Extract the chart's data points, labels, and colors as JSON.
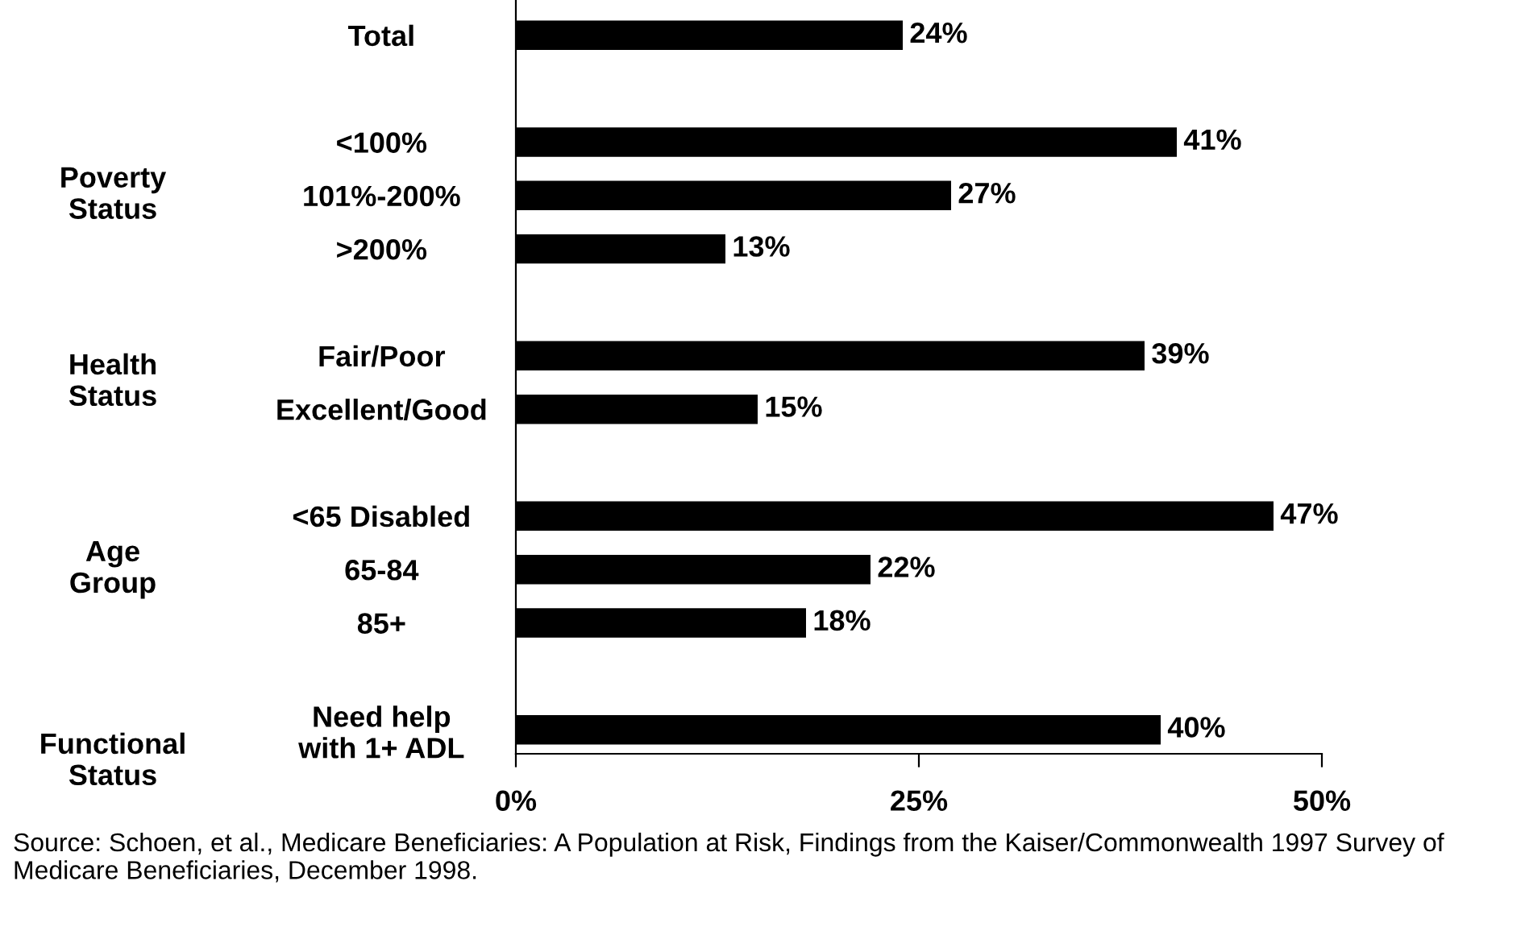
{
  "chart_data": {
    "type": "bar",
    "orientation": "horizontal",
    "categories": [
      "Total",
      null,
      "<100%",
      "101%-200%",
      ">200%",
      null,
      "Fair/Poor",
      "Excellent/Good",
      null,
      "<65 Disabled",
      "65-84",
      "85+",
      null,
      "Need help\nwith 1+ ADL"
    ],
    "values": [
      24,
      null,
      41,
      27,
      13,
      null,
      39,
      15,
      null,
      47,
      22,
      18,
      null,
      40
    ],
    "value_labels": [
      "24%",
      null,
      "41%",
      "27%",
      "13%",
      null,
      "39%",
      "15%",
      null,
      "47%",
      "22%",
      "18%",
      null,
      "40%"
    ],
    "color": "#000000",
    "xlim": [
      0,
      50
    ],
    "xticks": [
      {
        "value": 0,
        "label": "0%"
      },
      {
        "value": 25,
        "label": "25%"
      },
      {
        "value": 50,
        "label": "50%"
      }
    ],
    "grid": false,
    "legend": false,
    "annotations": [
      "Poverty\nStatus",
      "Health\nStatus",
      "Age\nGroup",
      "Functional\nStatus",
      "Source: Schoen, et al., Medicare Beneficiaries: A Population at Risk, Findings from the Kaiser/Commonwealth 1997 Survey of Medicare Beneficiaries, December 1998."
    ]
  }
}
